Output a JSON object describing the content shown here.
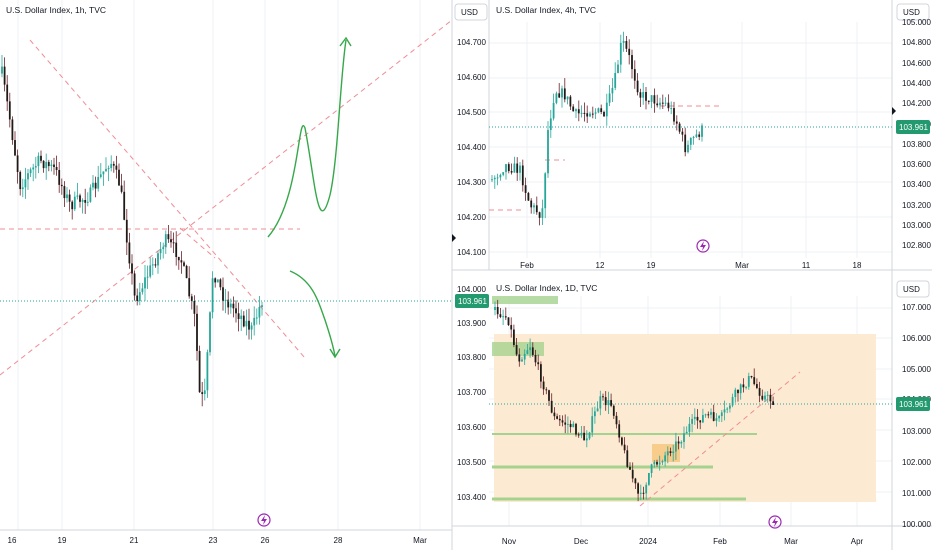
{
  "panels": {
    "left": {
      "title": "U.S. Dollar Index, 1h, TVC",
      "price_ticks": [
        "104.000",
        "103.900",
        "103.800",
        "103.700",
        "103.600",
        "103.500",
        "103.400"
      ],
      "last_price": "103.961",
      "date_ticks": [
        "16",
        "19",
        "21",
        "23",
        "26",
        "28",
        "Mar"
      ]
    },
    "top_right": {
      "currency": "USD",
      "title": "U.S. Dollar Index, 4h, TVC",
      "left_ticks": [
        "104.700",
        "104.600",
        "104.500",
        "104.400",
        "104.300",
        "104.200",
        "104.100"
      ],
      "right_ticks": [
        "105.000",
        "104.800",
        "104.600",
        "104.400",
        "104.200",
        "104.000",
        "103.800",
        "103.600",
        "103.400",
        "103.200",
        "103.000",
        "102.800"
      ],
      "last_price": "103.961",
      "date_ticks": [
        "Feb",
        "12",
        "19",
        "Mar",
        "11",
        "18"
      ]
    },
    "bottom_right": {
      "currency": "USD",
      "title": "U.S. Dollar Index, 1D, TVC",
      "right_ticks": [
        "107.000",
        "106.000",
        "105.000",
        "104.000",
        "103.000",
        "102.000",
        "101.000",
        "100.000"
      ],
      "last_price": "103.961",
      "date_ticks": [
        "Nov",
        "Dec",
        "2024",
        "Feb",
        "Mar",
        "Apr"
      ]
    }
  },
  "colors": {
    "up_candle": "#26a69a",
    "down_candle": "#ef5350",
    "candle_body": "#1f1a17",
    "candle_wick": "#6b1f2a",
    "price_line": "#26a69a",
    "price_tag_bg": "#22996e",
    "projection_arrow": "#36a84a",
    "dashed_red": "#f08c95",
    "zone_fill": "#fcebd2",
    "support_line": "#a5d28f",
    "logo_ring": "#9c27b0"
  },
  "icons": [
    "lightning-logo-icon"
  ],
  "chart_data": [
    {
      "type": "candlestick",
      "title": "U.S. Dollar Index, 1h, TVC",
      "xlabel": "",
      "ylabel": "",
      "x_ticks": [
        "16",
        "19",
        "21",
        "23",
        "26",
        "28",
        "Mar"
      ],
      "y_ticks": [
        104.0,
        103.9,
        103.8,
        103.7,
        103.6,
        103.5,
        103.4
      ],
      "ylim": [
        103.34,
        104.08
      ],
      "last_price": 103.961,
      "close_path": [
        {
          "x": "16",
          "y": 103.89
        },
        {
          "x": "16.5",
          "y": 103.84
        },
        {
          "x": "17",
          "y": 103.82
        },
        {
          "x": "19",
          "y": 103.77
        },
        {
          "x": "19.5",
          "y": 103.8
        },
        {
          "x": "20",
          "y": 103.85
        },
        {
          "x": "20.5",
          "y": 103.71
        },
        {
          "x": "21",
          "y": 103.63
        },
        {
          "x": "21.5",
          "y": 103.72
        },
        {
          "x": "22",
          "y": 103.68
        },
        {
          "x": "22.5",
          "y": 103.6
        },
        {
          "x": "23",
          "y": 103.46
        },
        {
          "x": "23.5",
          "y": 103.65
        },
        {
          "x": "24",
          "y": 103.62
        },
        {
          "x": "25",
          "y": 103.59
        },
        {
          "x": "26",
          "y": 103.61
        }
      ],
      "annotations": [
        "horizontal dashed levels at ~103.71 and ~103.60",
        "diagonal dashed trendlines",
        "green projection arrows up and down"
      ]
    },
    {
      "type": "candlestick",
      "title": "U.S. Dollar Index, 4h, TVC",
      "xlabel": "",
      "ylabel": "",
      "x_ticks": [
        "Feb",
        "12",
        "19",
        "Mar",
        "11",
        "18"
      ],
      "y_ticks": [
        104.7,
        104.6,
        104.5,
        104.4,
        104.3,
        104.2,
        104.1
      ],
      "ylim": [
        104.05,
        104.78
      ],
      "last_price": 103.961,
      "close_path": [
        {
          "x": "late Jan",
          "y": 104.27
        },
        {
          "x": "Feb",
          "y": 104.33
        },
        {
          "x": "early Feb",
          "y": 104.17
        },
        {
          "x": "Feb 5",
          "y": 104.57
        },
        {
          "x": "Feb 9",
          "y": 104.5
        },
        {
          "x": "Feb 13",
          "y": 104.75
        },
        {
          "x": "Feb 15",
          "y": 104.55
        },
        {
          "x": "Feb 19",
          "y": 104.52
        },
        {
          "x": "Feb 21",
          "y": 104.45
        },
        {
          "x": "Feb 22",
          "y": 104.38
        },
        {
          "x": "Feb 23",
          "y": 104.47
        }
      ]
    },
    {
      "type": "candlestick",
      "title": "U.S. Dollar Index, 1D, TVC",
      "xlabel": "",
      "ylabel": "",
      "x_ticks": [
        "Nov",
        "Dec",
        "2024",
        "Feb",
        "Mar",
        "Apr"
      ],
      "y_ticks": [
        107.0,
        106.0,
        105.0,
        104.0,
        103.0,
        102.0,
        101.0,
        100.0
      ],
      "ylim": [
        99.9,
        107.3
      ],
      "last_price": 103.961,
      "close_path": [
        {
          "x": "late Oct",
          "y": 106.5
        },
        {
          "x": "Nov",
          "y": 105.8
        },
        {
          "x": "mid Nov",
          "y": 104.3
        },
        {
          "x": "late Nov",
          "y": 103.3
        },
        {
          "x": "Dec",
          "y": 103.6
        },
        {
          "x": "mid Dec",
          "y": 102.3
        },
        {
          "x": "late Dec",
          "y": 101.3
        },
        {
          "x": "2024",
          "y": 102.2
        },
        {
          "x": "mid Jan",
          "y": 103.2
        },
        {
          "x": "Feb",
          "y": 104.0
        },
        {
          "x": "mid Feb",
          "y": 104.6
        },
        {
          "x": "late Feb",
          "y": 104.0
        }
      ],
      "annotations": [
        "supply/demand zone shaded orange",
        "support levels at ~103.0, ~102.0, ~101.0",
        "dashed rising trendline"
      ]
    }
  ]
}
